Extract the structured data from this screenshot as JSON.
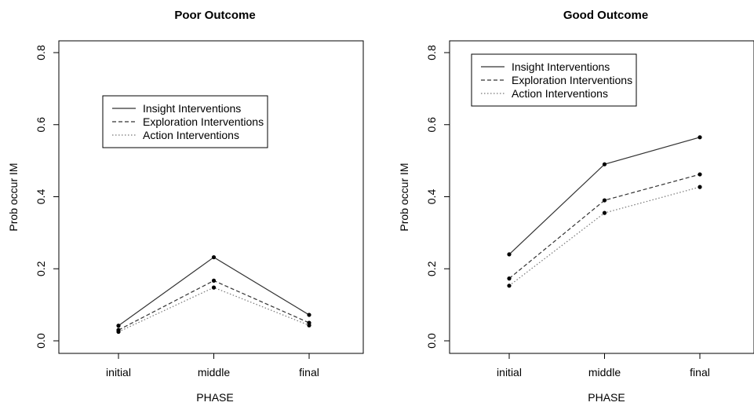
{
  "chart_data": [
    {
      "type": "line",
      "title": "Poor Outcome",
      "xlabel": "PHASE",
      "ylabel": "Prob occur IM",
      "categories": [
        "initial",
        "middle",
        "final"
      ],
      "ylim": [
        0.0,
        0.8
      ],
      "yticks": [
        "0.0",
        "0.2",
        "0.4",
        "0.6",
        "0.8"
      ],
      "legend_position": "upper-middle",
      "series": [
        {
          "name": "Insight Interventions",
          "style": "solid",
          "values": [
            0.042,
            0.232,
            0.072
          ]
        },
        {
          "name": "Exploration Interventions",
          "style": "dashed",
          "values": [
            0.03,
            0.167,
            0.05
          ]
        },
        {
          "name": "Action Interventions",
          "style": "dotted",
          "values": [
            0.025,
            0.148,
            0.043
          ]
        }
      ]
    },
    {
      "type": "line",
      "title": "Good Outcome",
      "xlabel": "PHASE",
      "ylabel": "Prob occur IM",
      "categories": [
        "initial",
        "middle",
        "final"
      ],
      "ylim": [
        0.0,
        0.8
      ],
      "yticks": [
        "0.0",
        "0.2",
        "0.4",
        "0.6",
        "0.8"
      ],
      "legend_position": "top-left",
      "series": [
        {
          "name": "Insight Interventions",
          "style": "solid",
          "values": [
            0.24,
            0.49,
            0.565
          ]
        },
        {
          "name": "Exploration Interventions",
          "style": "dashed",
          "values": [
            0.173,
            0.39,
            0.462
          ]
        },
        {
          "name": "Action Interventions",
          "style": "dotted",
          "values": [
            0.153,
            0.355,
            0.427
          ]
        }
      ]
    }
  ]
}
